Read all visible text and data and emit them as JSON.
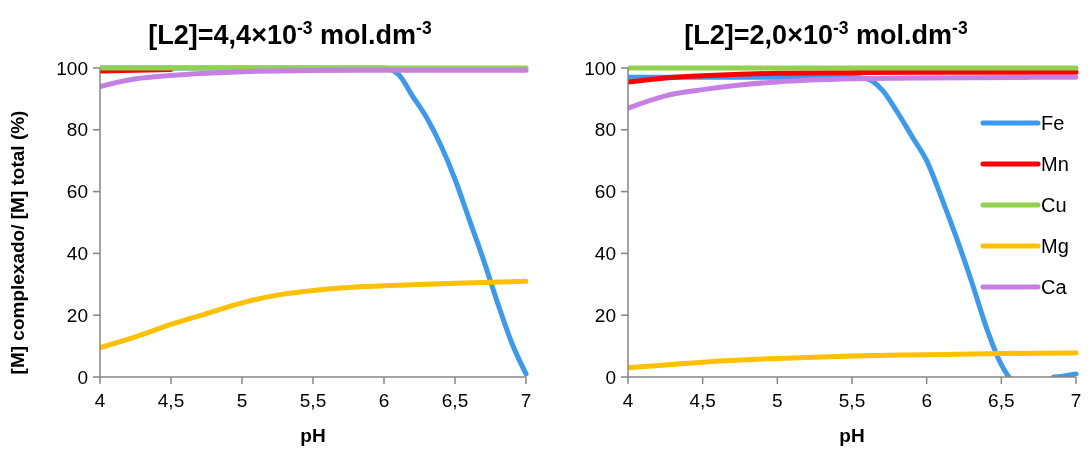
{
  "chart_data": [
    {
      "type": "line",
      "title": "[L2]=4,4×10$^{-3}$ mol.dm$^{-3}$",
      "xlabel": "pH",
      "ylabel": "[M] complexado/ [M] total (%)",
      "xlim": [
        4,
        7
      ],
      "ylim": [
        0,
        100
      ],
      "xticks": [
        4,
        {
          "value": 4.5,
          "label": "4,5"
        },
        5,
        {
          "value": 5.5,
          "label": "5,5"
        },
        6,
        {
          "value": 6.5,
          "label": "6,5"
        },
        7
      ],
      "yticks": [
        0,
        20,
        40,
        60,
        80,
        100
      ],
      "grid": false,
      "legend": false,
      "marker": "none",
      "line_style": "solid",
      "series": [
        {
          "color": "#3a99f0",
          "x": [
            4,
            5,
            6,
            6.1,
            6.2,
            6.3,
            6.4,
            6.5,
            6.6,
            6.7,
            6.8,
            6.9,
            7
          ],
          "values": [
            100,
            100,
            100,
            98,
            91,
            84,
            75,
            64,
            51,
            38,
            24,
            11,
            1
          ]
        },
        {
          "color": "#ff0000",
          "x": [
            4,
            4.5
          ],
          "values": [
            99,
            99.5
          ]
        },
        {
          "color": "#92d050",
          "x": [
            4,
            5,
            6,
            7
          ],
          "values": [
            100,
            100,
            100,
            100
          ]
        },
        {
          "color": "#ffc000",
          "x": [
            4,
            4.25,
            4.5,
            4.75,
            5,
            5.25,
            5.5,
            5.75,
            6,
            6.5,
            7
          ],
          "values": [
            9.5,
            13,
            17,
            20.5,
            24,
            26.5,
            28,
            29,
            29.5,
            30.3,
            31
          ]
        },
        {
          "color": "#c67fe3",
          "x": [
            4,
            4.25,
            4.5,
            4.75,
            5,
            5.5,
            6,
            7
          ],
          "values": [
            94,
            96.5,
            97.6,
            98.3,
            98.8,
            99.2,
            99.3,
            99.3
          ]
        }
      ]
    },
    {
      "type": "line",
      "title": "[L2]=2,0×10$^{-3}$ mol.dm$^{-3}$",
      "xlabel": "pH",
      "xlim": [
        4,
        7
      ],
      "ylim": [
        0,
        100
      ],
      "xticks": [
        4,
        {
          "value": 4.5,
          "label": "4,5"
        },
        5,
        {
          "value": 5.5,
          "label": "5,5"
        },
        6,
        {
          "value": 6.5,
          "label": "6,5"
        },
        7
      ],
      "yticks": [
        0,
        20,
        40,
        60,
        80,
        100
      ],
      "grid": false,
      "legend": "right",
      "marker": "none",
      "line_style": "solid",
      "series": [
        {
          "name": "Fe",
          "color": "#3a99f0",
          "x": [
            4,
            5,
            5.5,
            5.6,
            5.7,
            5.8,
            5.9,
            6,
            6.1,
            6.2,
            6.3,
            6.4,
            6.5,
            6.55,
            6.6,
            6.7,
            6.8,
            6.85,
            6.9,
            7
          ],
          "values": [
            97,
            97,
            97,
            96.5,
            93,
            86,
            78,
            70,
            58,
            45,
            31,
            16,
            4,
            0,
            null,
            null,
            null,
            0,
            0.2,
            1
          ]
        },
        {
          "name": "Mn",
          "color": "#ff0000",
          "x": [
            4,
            4.25,
            4.5,
            4.75,
            5,
            5.5,
            6,
            7
          ],
          "values": [
            95.5,
            96.8,
            97.5,
            98,
            98.3,
            98.5,
            98.6,
            98.6
          ]
        },
        {
          "name": "Cu",
          "color": "#92d050",
          "x": [
            4,
            5,
            6,
            7
          ],
          "values": [
            100,
            100,
            100,
            100
          ]
        },
        {
          "name": "Mg",
          "color": "#ffc000",
          "x": [
            4,
            4.5,
            5,
            5.5,
            6,
            6.5,
            7
          ],
          "values": [
            3,
            4.8,
            6,
            6.8,
            7.2,
            7.6,
            7.8
          ]
        },
        {
          "name": "Ca",
          "color": "#c67fe3",
          "x": [
            4,
            4.25,
            4.5,
            4.75,
            5,
            5.5,
            6,
            7
          ],
          "values": [
            87,
            91,
            93,
            94.5,
            95.5,
            96.5,
            96.8,
            97
          ]
        }
      ]
    }
  ]
}
